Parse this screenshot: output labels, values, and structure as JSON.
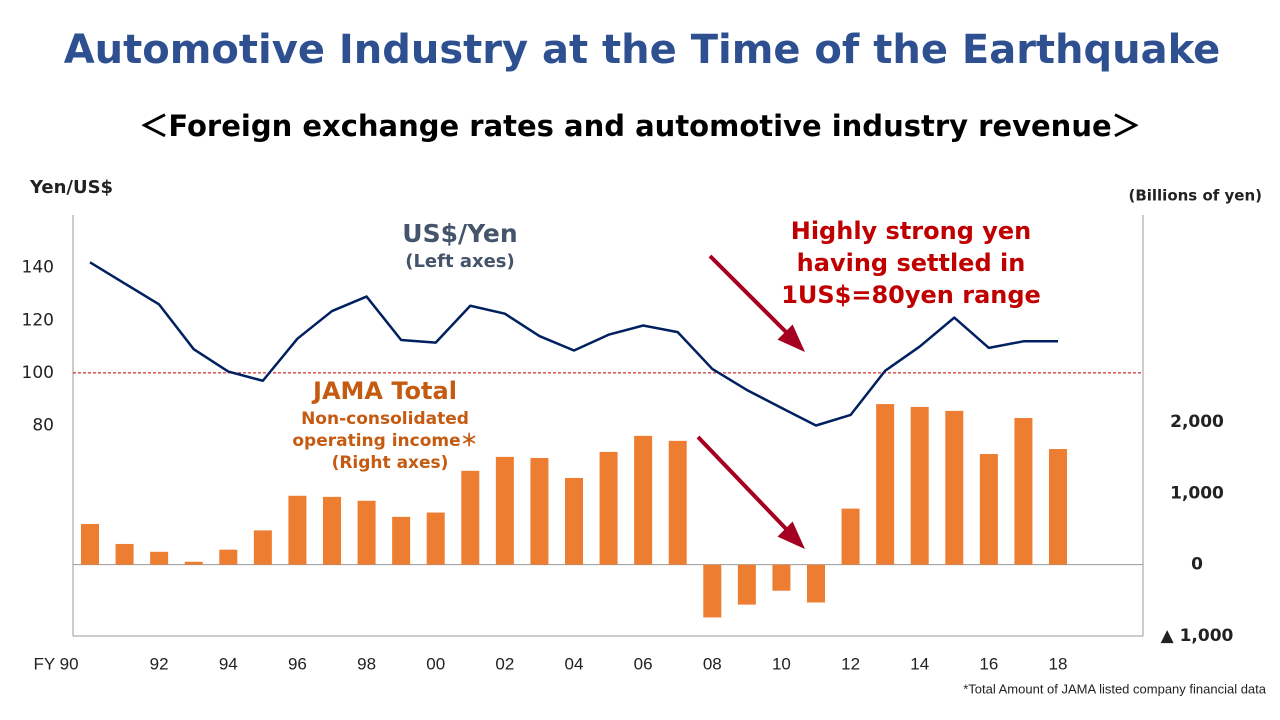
{
  "chart_data": {
    "type": "bar_line",
    "title": "Automotive Industry at the Time of the Earthquake",
    "subtitle": "＜Foreign exchange rates and automotive industry revenue＞",
    "y_label": "Yen/US$",
    "y2_label": "(Billions of yen)",
    "footnote": "*Total Amount of JAMA listed company financial data",
    "categories": [
      "FY 90",
      null,
      "92",
      null,
      "94",
      null,
      "96",
      null,
      "98",
      null,
      "00",
      null,
      "02",
      null,
      "04",
      null,
      "06",
      null,
      "08",
      null,
      "10",
      null,
      "12",
      null,
      "14",
      null,
      "16",
      null,
      "18"
    ],
    "ylim": [
      0,
      160
    ],
    "yticks": [
      80,
      100,
      120,
      140
    ],
    "y2lim": [
      -1000,
      4900
    ],
    "y2ticks": [
      {
        "value": -1000,
        "label": "▲ 1,000"
      },
      0,
      {
        "value": 1000,
        "label": "1,000"
      },
      {
        "value": 2000,
        "label": "2,000"
      }
    ],
    "reference_line": {
      "value": 100,
      "color": "#c00000"
    },
    "series": [
      {
        "name": "US$/Yen",
        "type": "line",
        "color": "#002060",
        "values": [
          142,
          134,
          126,
          109,
          100.5,
          97,
          113,
          123.5,
          129,
          112.5,
          111.5,
          125.5,
          122.5,
          114,
          108.5,
          114.5,
          118,
          115.5,
          101.5,
          93.5,
          86.7,
          80,
          84,
          100.8,
          110,
          121,
          109.5,
          112,
          112
        ]
      },
      {
        "name": "JAMA Total",
        "type": "bar",
        "axis": "y2",
        "color": "#ed7d31",
        "values": [
          570,
          290,
          180,
          40,
          210,
          480,
          965,
          950,
          895,
          670,
          730,
          1315,
          1510,
          1495,
          1215,
          1580,
          1805,
          1735,
          -740,
          -560,
          -365,
          -530,
          785,
          2250,
          2210,
          2155,
          1550,
          2055,
          1620
        ]
      }
    ],
    "annotations": [
      "(Left axes)",
      "Non-consolidated",
      "operating income＊",
      "(Right axes)",
      "Highly strong yen",
      "having settled in",
      "1US$=80yen range"
    ]
  }
}
